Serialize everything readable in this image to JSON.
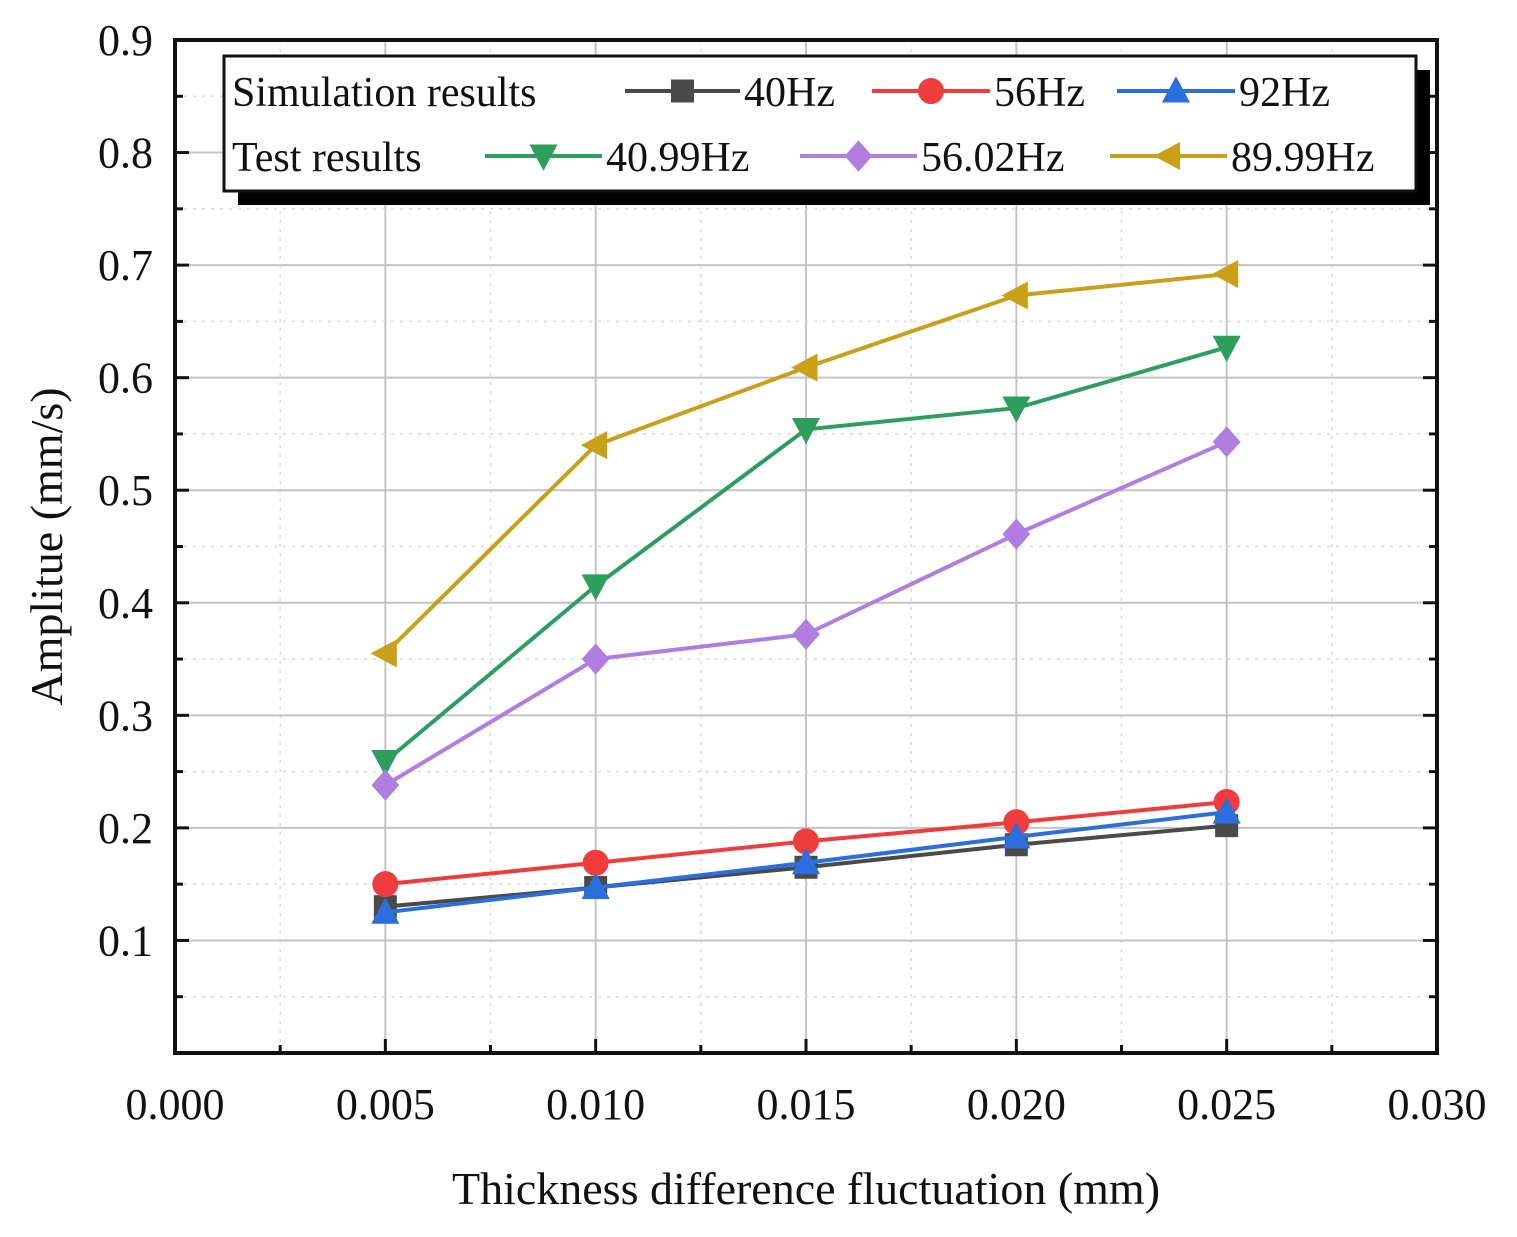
{
  "chart_data": {
    "type": "line",
    "xlabel": "Thickness difference fluctuation (mm)",
    "ylabel": "Amplitue (mm/s)",
    "xlim": [
      0.0,
      0.03
    ],
    "ylim": [
      0.0,
      0.9
    ],
    "x_ticks": [
      "0.000",
      "0.005",
      "0.010",
      "0.015",
      "0.020",
      "0.025",
      "0.030"
    ],
    "y_ticks": [
      "0.1",
      "0.2",
      "0.3",
      "0.4",
      "0.5",
      "0.6",
      "0.7",
      "0.8",
      "0.9"
    ],
    "grid": true,
    "legend_placement": "top",
    "legend_groups": [
      "Simulation results",
      "Test results"
    ],
    "x": [
      0.005,
      0.01,
      0.015,
      0.02,
      0.025
    ],
    "series": [
      {
        "name": "40Hz",
        "group": "Simulation results",
        "color": "#4a4a4a",
        "marker": "square",
        "values": [
          0.13,
          0.147,
          0.165,
          0.185,
          0.202
        ]
      },
      {
        "name": "56Hz",
        "group": "Simulation results",
        "color": "#f03c3c",
        "marker": "circle",
        "values": [
          0.15,
          0.169,
          0.188,
          0.205,
          0.223
        ]
      },
      {
        "name": "92Hz",
        "group": "Simulation results",
        "color": "#2b6fde",
        "marker": "triangle-up",
        "values": [
          0.125,
          0.147,
          0.169,
          0.192,
          0.214
        ]
      },
      {
        "name": "40.99Hz",
        "group": "Test results",
        "color": "#2e9e5e",
        "marker": "triangle-down",
        "values": [
          0.259,
          0.415,
          0.554,
          0.573,
          0.627
        ]
      },
      {
        "name": "56.02Hz",
        "group": "Test results",
        "color": "#b07ee0",
        "marker": "diamond",
        "values": [
          0.238,
          0.35,
          0.372,
          0.461,
          0.543
        ]
      },
      {
        "name": "89.99Hz",
        "group": "Test results",
        "color": "#c9a018",
        "marker": "triangle-left",
        "values": [
          0.355,
          0.54,
          0.609,
          0.673,
          0.692
        ]
      }
    ]
  }
}
